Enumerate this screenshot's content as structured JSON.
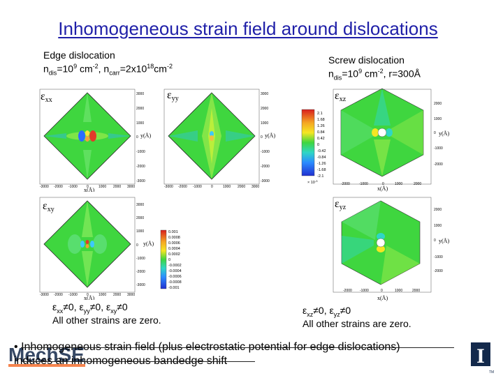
{
  "slide": {
    "title": "Inhomogeneous strain field around dislocations",
    "edge": {
      "heading": "Edge dislocation",
      "density_prefix": "n",
      "density_sub": "dis",
      "density_mid": "=10",
      "density_exp": "9",
      "density_unit": " cm",
      "density_unit_exp": "-2",
      "carrier_prefix": ", n",
      "carrier_sub": "carr",
      "carrier_mid": "=2x10",
      "carrier_exp": "18",
      "carrier_unit": "cm",
      "carrier_unit_exp": "-2"
    },
    "screw": {
      "heading": "Screw dislocation",
      "density_prefix": "n",
      "density_sub": "dis",
      "density_mid": "=10",
      "density_exp": "9",
      "density_unit": " cm",
      "density_unit_exp": "-2",
      "radius_text": ", r=300Å"
    },
    "edge_plots": [
      {
        "label_main": "ε",
        "label_sub": "xx"
      },
      {
        "label_main": "ε",
        "label_sub": "yy"
      },
      {
        "label_main": "ε",
        "label_sub": "xy"
      }
    ],
    "screw_plots": [
      {
        "label_main": "ε",
        "label_sub": "xz"
      },
      {
        "label_main": "ε",
        "label_sub": "yz"
      }
    ],
    "axis": {
      "x_label": "x(Å)",
      "y_label": "y(Å)",
      "edge_x_ticks": [
        "-3000",
        "-2000",
        "-1000",
        "0",
        "1000",
        "2000",
        "3000"
      ],
      "edge_y_ticks": [
        "3000",
        "2000",
        "1000",
        "0",
        "-1000",
        "-2000",
        "-3000"
      ],
      "screw_x_ticks": [
        "-2000",
        "-1000",
        "0",
        "1000",
        "2000"
      ],
      "screw_y_ticks": [
        "2000",
        "1000",
        "0",
        "-1000",
        "-2000"
      ]
    },
    "edge_colorbar": [
      "0.001",
      "0.0008",
      "0.0006",
      "0.0004",
      "0.0002",
      "0",
      "-0.0002",
      "-0.0004",
      "-0.0006",
      "-0.0008",
      "-0.001"
    ],
    "screw_colorbar": {
      "values": [
        "2.1",
        "1.68",
        "1.26",
        "0.84",
        "0.42",
        "0",
        "-0.42",
        "-0.84",
        "-1.26",
        "-1.68",
        "-2.1"
      ],
      "multiplier": "× 10",
      "multiplier_exp": "-3"
    },
    "edge_nonzero": {
      "e1": "ε",
      "s1": "xx",
      "t1": "≠0, ",
      "e2": "ε",
      "s2": "yy",
      "t2": "≠0, ",
      "e3": "ε",
      "s3": "xy",
      "t3": "≠0"
    },
    "edge_zero": "All other strains are zero.",
    "screw_nonzero": {
      "e1": "ε",
      "s1": "xz",
      "t1": "≠0, ",
      "e2": "ε",
      "s2": "yz",
      "t2": "≠0"
    },
    "screw_zero": "All other strains are zero.",
    "bullet": "•",
    "bottom_line1": "Inhomogeneous strain field (plus electrostatic potential for edge dislocations)",
    "bottom_line2": "induces an inhomogeneous bandedge shift",
    "logo_left_text": "MechSE",
    "logo_right_text": "I",
    "logo_right_tm": "TM",
    "colors": {
      "title": "#1f1fa8",
      "field_green": "#3fd63f",
      "plot_bg": "#d6d6d6",
      "logo_orange": "#f26522",
      "logo_navy": "#13294b"
    }
  }
}
